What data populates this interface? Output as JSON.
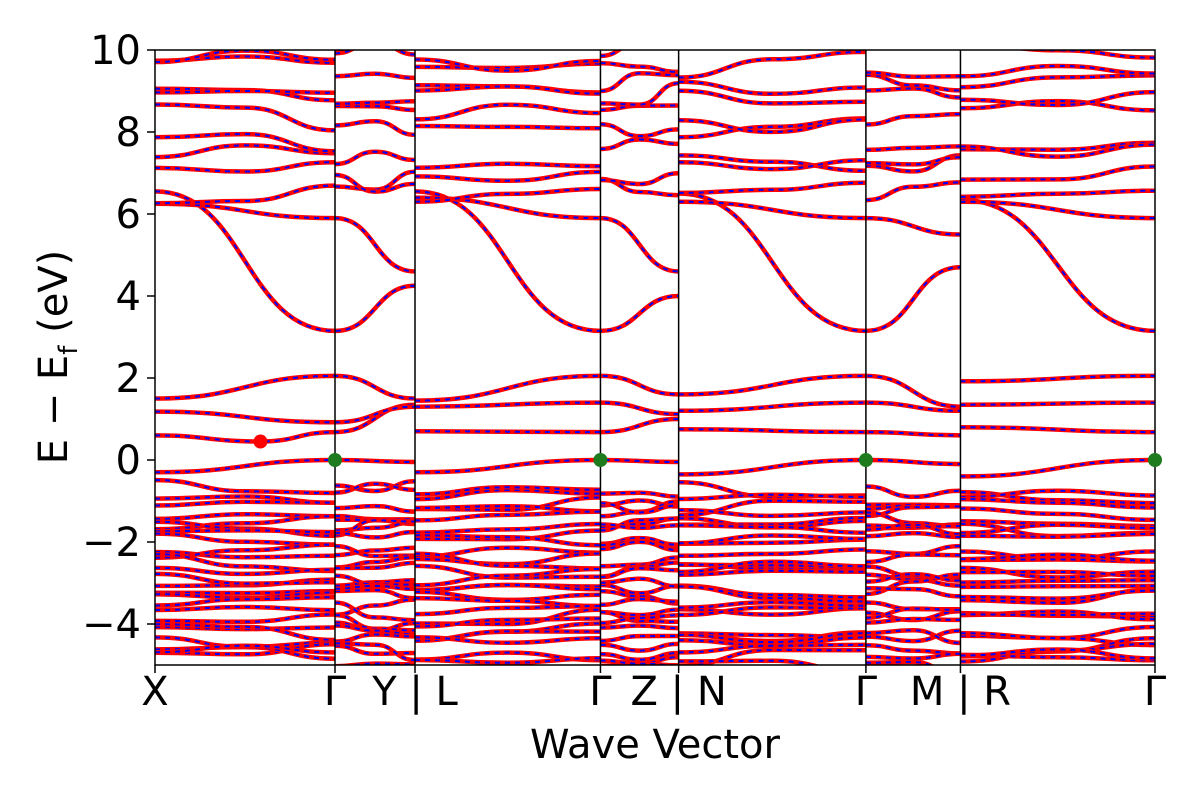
{
  "chart_data": {
    "type": "line",
    "title": "",
    "xlabel": "Wave Vector",
    "ylabel": "E − E",
    "ylabel_subscript": "f",
    "ylabel_unit": " (eV)",
    "ylim": [
      -5,
      10
    ],
    "yticks": [
      -4,
      -2,
      0,
      2,
      4,
      6,
      8,
      10
    ],
    "ytick_labels": [
      "−4",
      "−2",
      "0",
      "2",
      "4",
      "6",
      "8",
      "10"
    ],
    "x_range": [
      0,
      5.5
    ],
    "kpoints": [
      {
        "x": 0.0,
        "label": "X"
      },
      {
        "x": 0.99,
        "label": "Γ"
      },
      {
        "x": 1.43,
        "label": "Y | L"
      },
      {
        "x": 2.45,
        "label": "Γ"
      },
      {
        "x": 2.88,
        "label": "Z | N"
      },
      {
        "x": 3.91,
        "label": "Γ"
      },
      {
        "x": 4.43,
        "label": "M | R"
      },
      {
        "x": 5.5,
        "label": "Γ"
      }
    ],
    "series": [
      {
        "values": [],
        "color": "#ff0000",
        "style": "solid"
      },
      {
        "values": [],
        "color": "#0000ff",
        "style": "dashed"
      }
    ],
    "conduction_bands": [
      [
        [
          0,
          0.6
        ],
        [
          0.58,
          0.45
        ],
        [
          0.99,
          0.68
        ],
        [
          1.43,
          1.35
        ]
      ],
      [
        [
          0,
          1.18
        ],
        [
          0.99,
          0.92
        ],
        [
          1.43,
          1.3
        ]
      ],
      [
        [
          0,
          1.5
        ],
        [
          0.99,
          2.05
        ],
        [
          1.43,
          1.5
        ]
      ],
      [
        [
          0,
          6.55
        ],
        [
          0.99,
          3.15
        ],
        [
          1.43,
          4.25
        ]
      ],
      [
        [
          0,
          6.25
        ],
        [
          0.99,
          5.9
        ],
        [
          1.43,
          4.6
        ]
      ],
      [
        [
          1.43,
          0.7
        ],
        [
          2.45,
          0.68
        ],
        [
          2.88,
          1.0
        ]
      ],
      [
        [
          1.43,
          1.3
        ],
        [
          2.45,
          1.4
        ],
        [
          2.88,
          1.12
        ]
      ],
      [
        [
          1.43,
          1.45
        ],
        [
          2.45,
          2.05
        ],
        [
          2.88,
          1.6
        ]
      ],
      [
        [
          1.43,
          6.55
        ],
        [
          2.45,
          3.15
        ],
        [
          2.88,
          4.0
        ]
      ],
      [
        [
          1.43,
          6.4
        ],
        [
          2.45,
          5.9
        ],
        [
          2.88,
          4.6
        ]
      ],
      [
        [
          2.88,
          0.75
        ],
        [
          3.91,
          0.68
        ],
        [
          4.43,
          0.6
        ]
      ],
      [
        [
          2.88,
          1.2
        ],
        [
          3.91,
          1.4
        ],
        [
          4.43,
          1.2
        ]
      ],
      [
        [
          2.88,
          1.6
        ],
        [
          3.91,
          2.05
        ],
        [
          4.43,
          1.3
        ]
      ],
      [
        [
          2.88,
          6.5
        ],
        [
          3.91,
          3.15
        ],
        [
          4.43,
          4.7
        ]
      ],
      [
        [
          2.88,
          6.3
        ],
        [
          3.91,
          5.9
        ],
        [
          4.43,
          5.5
        ]
      ],
      [
        [
          4.43,
          0.8
        ],
        [
          5.5,
          0.68
        ]
      ],
      [
        [
          4.43,
          1.35
        ],
        [
          5.5,
          1.4
        ]
      ],
      [
        [
          4.43,
          1.92
        ],
        [
          5.5,
          2.05
        ]
      ],
      [
        [
          4.43,
          6.35
        ],
        [
          5.5,
          3.15
        ]
      ],
      [
        [
          4.43,
          6.3
        ],
        [
          5.5,
          5.9
        ]
      ]
    ],
    "valence_top": [
      [
        [
          0,
          -0.3
        ],
        [
          0.99,
          0.0
        ],
        [
          1.43,
          -0.05
        ]
      ],
      [
        [
          1.43,
          -0.3
        ],
        [
          2.45,
          0.0
        ],
        [
          2.88,
          -0.05
        ]
      ],
      [
        [
          2.88,
          -0.35
        ],
        [
          3.91,
          0.0
        ],
        [
          4.43,
          -0.1
        ]
      ],
      [
        [
          4.43,
          -0.4
        ],
        [
          5.5,
          0.0
        ]
      ]
    ],
    "markers": [
      {
        "x": 0.99,
        "y": 0.0,
        "color": "#1e7b1e"
      },
      {
        "x": 2.45,
        "y": 0.0,
        "color": "#1e7b1e"
      },
      {
        "x": 3.91,
        "y": 0.0,
        "color": "#1e7b1e"
      },
      {
        "x": 5.5,
        "y": 0.0,
        "color": "#1e7b1e"
      },
      {
        "x": 0.58,
        "y": 0.45,
        "color": "#ff0000"
      }
    ],
    "colors": {
      "band": "#ff0000",
      "overlay": "#0000ff",
      "vbm": "#1e7b1e",
      "cbm": "#ff0000"
    },
    "grid": false
  }
}
